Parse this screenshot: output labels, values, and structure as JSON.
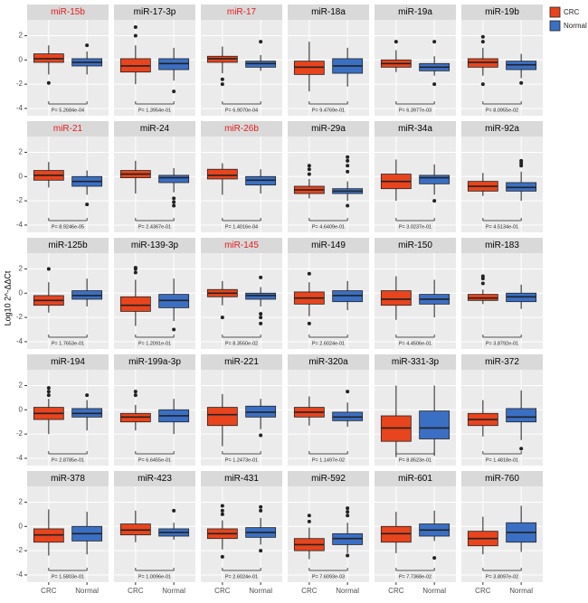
{
  "chart_data": {
    "type": "box",
    "ylabel": "Log10 2^-ΔΔCt",
    "categories": [
      "CRC",
      "Normal"
    ],
    "series": [
      {
        "name": "CRC",
        "color": "#e8441d"
      },
      {
        "name": "Normal",
        "color": "#3b6fc4"
      }
    ],
    "ylim": [
      -4.6,
      3.3
    ],
    "yticks": [
      -4,
      -2,
      0,
      2
    ],
    "grid": true,
    "panels": [
      {
        "title": "miR-15b",
        "title_color": "#e41a1c",
        "annotation": "P= 5.2684e-04",
        "boxes": [
          {
            "min": -1.2,
            "q1": -0.2,
            "median": 0.1,
            "q3": 0.5,
            "max": 1.2,
            "outliers": [
              -1.9
            ]
          },
          {
            "min": -1.2,
            "q1": -0.5,
            "median": -0.2,
            "q3": 0.1,
            "max": 0.7,
            "outliers": [
              1.2
            ]
          }
        ]
      },
      {
        "title": "miR-17-3p",
        "title_color": "#000000",
        "annotation": "P= 1.3954e-01",
        "boxes": [
          {
            "min": -2.0,
            "q1": -1.0,
            "median": -0.5,
            "q3": 0.1,
            "max": 1.2,
            "outliers": [
              2.0,
              2.7
            ]
          },
          {
            "min": -1.7,
            "q1": -0.8,
            "median": -0.3,
            "q3": 0.1,
            "max": 1.0,
            "outliers": [
              -2.6
            ]
          }
        ]
      },
      {
        "title": "miR-17",
        "title_color": "#e41a1c",
        "annotation": "P= 6.9070e-04",
        "boxes": [
          {
            "min": -1.1,
            "q1": -0.2,
            "median": 0.1,
            "q3": 0.3,
            "max": 1.1,
            "outliers": [
              -1.6,
              -2.0
            ]
          },
          {
            "min": -0.9,
            "q1": -0.6,
            "median": -0.3,
            "q3": -0.1,
            "max": 0.4,
            "outliers": [
              1.5
            ]
          }
        ]
      },
      {
        "title": "miR-18a",
        "title_color": "#000000",
        "annotation": "P= 9.4769e-01",
        "boxes": [
          {
            "min": -2.6,
            "q1": -1.2,
            "median": -0.6,
            "q3": -0.1,
            "max": 1.5,
            "outliers": []
          },
          {
            "min": -2.2,
            "q1": -1.1,
            "median": -0.5,
            "q3": 0.1,
            "max": 1.0,
            "outliers": []
          }
        ]
      },
      {
        "title": "miR-19a",
        "title_color": "#000000",
        "annotation": "P= 6.3977e-03",
        "boxes": [
          {
            "min": -1.0,
            "q1": -0.6,
            "median": -0.3,
            "q3": 0.0,
            "max": 0.8,
            "outliers": [
              1.5
            ]
          },
          {
            "min": -1.3,
            "q1": -0.9,
            "median": -0.6,
            "q3": -0.3,
            "max": 0.3,
            "outliers": [
              1.5,
              -2.0
            ]
          }
        ]
      },
      {
        "title": "miR-19b",
        "title_color": "#000000",
        "annotation": "P= 8.0955e-02",
        "boxes": [
          {
            "min": -1.3,
            "q1": -0.6,
            "median": -0.2,
            "q3": 0.1,
            "max": 1.0,
            "outliers": [
              1.9,
              1.5,
              -2.0
            ]
          },
          {
            "min": -1.5,
            "q1": -0.8,
            "median": -0.4,
            "q3": -0.1,
            "max": 0.5,
            "outliers": [
              -1.9
            ]
          }
        ]
      },
      {
        "title": "miR-21",
        "title_color": "#e41a1c",
        "annotation": "P= 8.9246e-05",
        "boxes": [
          {
            "min": -0.9,
            "q1": -0.3,
            "median": 0.1,
            "q3": 0.5,
            "max": 1.2,
            "outliers": []
          },
          {
            "min": -1.5,
            "q1": -0.8,
            "median": -0.4,
            "q3": 0.0,
            "max": 0.5,
            "outliers": [
              -2.3
            ]
          }
        ]
      },
      {
        "title": "miR-24",
        "title_color": "#000000",
        "annotation": "P= 2.4367e-01",
        "boxes": [
          {
            "min": -1.4,
            "q1": -0.1,
            "median": 0.2,
            "q3": 0.5,
            "max": 1.3,
            "outliers": []
          },
          {
            "min": -1.3,
            "q1": -0.5,
            "median": -0.1,
            "q3": 0.1,
            "max": 0.7,
            "outliers": [
              -1.8,
              -2.1,
              -2.4
            ]
          }
        ]
      },
      {
        "title": "miR-26b",
        "title_color": "#e41a1c",
        "annotation": "P= 1.4016e-04",
        "boxes": [
          {
            "min": -1.5,
            "q1": -0.2,
            "median": 0.1,
            "q3": 0.6,
            "max": 1.1,
            "outliers": []
          },
          {
            "min": -1.4,
            "q1": -0.7,
            "median": -0.3,
            "q3": 0.0,
            "max": 0.6,
            "outliers": []
          }
        ]
      },
      {
        "title": "miR-29a",
        "title_color": "#000000",
        "annotation": "P= 4.6409e-01",
        "boxes": [
          {
            "min": -1.8,
            "q1": -1.4,
            "median": -1.1,
            "q3": -0.8,
            "max": -0.2,
            "outliers": [
              0.2,
              0.6,
              0.9
            ]
          },
          {
            "min": -2.0,
            "q1": -1.4,
            "median": -1.2,
            "q3": -1.0,
            "max": -0.4,
            "outliers": [
              0.4,
              0.9,
              1.3,
              1.6,
              -2.4
            ]
          }
        ]
      },
      {
        "title": "miR-34a",
        "title_color": "#000000",
        "annotation": "P= 3.0237e-01",
        "boxes": [
          {
            "min": -2.0,
            "q1": -1.0,
            "median": -0.4,
            "q3": 0.2,
            "max": 1.4,
            "outliers": []
          },
          {
            "min": -1.5,
            "q1": -0.6,
            "median": -0.1,
            "q3": 0.1,
            "max": 1.0,
            "outliers": [
              -2.0
            ]
          }
        ]
      },
      {
        "title": "miR-92a",
        "title_color": "#000000",
        "annotation": "P= 4.5134e-01",
        "boxes": [
          {
            "min": -1.6,
            "q1": -1.2,
            "median": -0.8,
            "q3": -0.4,
            "max": 0.3,
            "outliers": []
          },
          {
            "min": -2.0,
            "q1": -1.2,
            "median": -0.9,
            "q3": -0.5,
            "max": 0.4,
            "outliers": [
              0.9,
              1.1,
              1.3
            ]
          }
        ]
      },
      {
        "title": "miR-125b",
        "title_color": "#000000",
        "annotation": "P= 1.7653e-01",
        "boxes": [
          {
            "min": -1.6,
            "q1": -1.0,
            "median": -0.6,
            "q3": -0.2,
            "max": 0.9,
            "outliers": [
              2.0
            ]
          },
          {
            "min": -1.1,
            "q1": -0.5,
            "median": -0.2,
            "q3": 0.2,
            "max": 1.2,
            "outliers": []
          }
        ]
      },
      {
        "title": "miR-139-3p",
        "title_color": "#000000",
        "annotation": "P= 1.2091e-01",
        "boxes": [
          {
            "min": -2.7,
            "q1": -1.5,
            "median": -1.0,
            "q3": -0.3,
            "max": 1.1,
            "outliers": [
              1.7,
              2.0,
              2.1
            ]
          },
          {
            "min": -2.3,
            "q1": -1.2,
            "median": -0.6,
            "q3": -0.1,
            "max": 1.2,
            "outliers": [
              -3.0
            ]
          }
        ]
      },
      {
        "title": "miR-145",
        "title_color": "#e41a1c",
        "annotation": "P= 8.3550e-02",
        "boxes": [
          {
            "min": -1.0,
            "q1": -0.3,
            "median": 0.0,
            "q3": 0.3,
            "max": 1.0,
            "outliers": [
              -2.0
            ]
          },
          {
            "min": -1.1,
            "q1": -0.5,
            "median": -0.2,
            "q3": 0.0,
            "max": 0.5,
            "outliers": [
              1.3,
              -1.7,
              -2.0,
              -2.5
            ]
          }
        ]
      },
      {
        "title": "miR-149",
        "title_color": "#000000",
        "annotation": "P= 2.6024e-01",
        "boxes": [
          {
            "min": -1.9,
            "q1": -0.9,
            "median": -0.4,
            "q3": 0.1,
            "max": 0.9,
            "outliers": [
              1.6,
              -2.5
            ]
          },
          {
            "min": -1.4,
            "q1": -0.7,
            "median": -0.2,
            "q3": 0.2,
            "max": 1.0,
            "outliers": []
          }
        ]
      },
      {
        "title": "miR-150",
        "title_color": "#000000",
        "annotation": "P= 4.4506e-01",
        "boxes": [
          {
            "min": -2.2,
            "q1": -1.0,
            "median": -0.5,
            "q3": 0.2,
            "max": 1.4,
            "outliers": []
          },
          {
            "min": -2.0,
            "q1": -0.9,
            "median": -0.5,
            "q3": -0.1,
            "max": 1.1,
            "outliers": []
          }
        ]
      },
      {
        "title": "miR-183",
        "title_color": "#000000",
        "annotation": "P= 3.8792e-01",
        "boxes": [
          {
            "min": -0.9,
            "q1": -0.6,
            "median": -0.4,
            "q3": -0.1,
            "max": 0.3,
            "outliers": [
              0.8,
              1.2,
              1.4
            ]
          },
          {
            "min": -1.3,
            "q1": -0.7,
            "median": -0.3,
            "q3": 0.0,
            "max": 0.7,
            "outliers": []
          }
        ]
      },
      {
        "title": "miR-194",
        "title_color": "#000000",
        "annotation": "P= 2.8785e-01",
        "boxes": [
          {
            "min": -2.0,
            "q1": -0.8,
            "median": -0.3,
            "q3": 0.2,
            "max": 0.9,
            "outliers": [
              1.2,
              1.5,
              1.8
            ]
          },
          {
            "min": -1.7,
            "q1": -0.6,
            "median": -0.3,
            "q3": 0.1,
            "max": 0.8,
            "outliers": [
              1.2
            ]
          }
        ]
      },
      {
        "title": "miR-199a-3p",
        "title_color": "#000000",
        "annotation": "P= 6.6455e-01",
        "boxes": [
          {
            "min": -1.7,
            "q1": -1.0,
            "median": -0.6,
            "q3": -0.3,
            "max": 0.4,
            "outliers": [
              1.2,
              1.5
            ]
          },
          {
            "min": -2.0,
            "q1": -1.0,
            "median": -0.5,
            "q3": 0.0,
            "max": 0.9,
            "outliers": []
          }
        ]
      },
      {
        "title": "miR-221",
        "title_color": "#000000",
        "annotation": "P= 1.2473e-01",
        "boxes": [
          {
            "min": -3.0,
            "q1": -1.3,
            "median": -0.4,
            "q3": 0.2,
            "max": 1.3,
            "outliers": []
          },
          {
            "min": -1.6,
            "q1": -0.6,
            "median": -0.2,
            "q3": 0.3,
            "max": 0.9,
            "outliers": [
              -2.1
            ]
          }
        ]
      },
      {
        "title": "miR-320a",
        "title_color": "#000000",
        "annotation": "P= 1.1497e-02",
        "boxes": [
          {
            "min": -1.3,
            "q1": -0.6,
            "median": -0.2,
            "q3": 0.2,
            "max": 1.1,
            "outliers": []
          },
          {
            "min": -1.4,
            "q1": -0.9,
            "median": -0.6,
            "q3": -0.2,
            "max": 0.6,
            "outliers": [
              1.5
            ]
          }
        ]
      },
      {
        "title": "miR-331-3p",
        "title_color": "#000000",
        "annotation": "P= 8.8523e-01",
        "boxes": [
          {
            "min": -3.9,
            "q1": -2.6,
            "median": -1.5,
            "q3": -0.5,
            "max": 2.0,
            "outliers": []
          },
          {
            "min": -3.8,
            "q1": -2.4,
            "median": -1.5,
            "q3": -0.1,
            "max": 2.0,
            "outliers": []
          }
        ]
      },
      {
        "title": "miR-372",
        "title_color": "#000000",
        "annotation": "P= 1.4818e-01",
        "boxes": [
          {
            "min": -2.2,
            "q1": -1.3,
            "median": -0.8,
            "q3": -0.3,
            "max": 0.8,
            "outliers": []
          },
          {
            "min": -2.5,
            "q1": -1.0,
            "median": -0.6,
            "q3": 0.1,
            "max": 1.6,
            "outliers": [
              -3.2
            ]
          }
        ]
      },
      {
        "title": "miR-378",
        "title_color": "#000000",
        "annotation": "P= 1.5803e-01",
        "boxes": [
          {
            "min": -2.4,
            "q1": -1.3,
            "median": -0.7,
            "q3": -0.2,
            "max": 1.4,
            "outliers": []
          },
          {
            "min": -2.3,
            "q1": -1.2,
            "median": -0.6,
            "q3": 0.0,
            "max": 1.2,
            "outliers": []
          }
        ]
      },
      {
        "title": "miR-423",
        "title_color": "#000000",
        "annotation": "P= 1.0096e-01",
        "boxes": [
          {
            "min": -1.3,
            "q1": -0.7,
            "median": -0.3,
            "q3": 0.2,
            "max": 1.3,
            "outliers": []
          },
          {
            "min": -1.1,
            "q1": -0.8,
            "median": -0.5,
            "q3": -0.2,
            "max": 0.3,
            "outliers": [
              1.3
            ]
          }
        ]
      },
      {
        "title": "miR-431",
        "title_color": "#000000",
        "annotation": "P= 2.6024e-01",
        "boxes": [
          {
            "min": -1.9,
            "q1": -1.0,
            "median": -0.6,
            "q3": -0.2,
            "max": 0.5,
            "outliers": [
              1.0,
              1.3,
              1.7,
              -2.5
            ]
          },
          {
            "min": -1.5,
            "q1": -0.9,
            "median": -0.5,
            "q3": -0.1,
            "max": 0.7,
            "outliers": [
              1.3,
              1.6,
              -2.0
            ]
          }
        ]
      },
      {
        "title": "miR-592",
        "title_color": "#000000",
        "annotation": "P= 7.6093e-03",
        "boxes": [
          {
            "min": -2.7,
            "q1": -2.0,
            "median": -1.5,
            "q3": -1.0,
            "max": -0.1,
            "outliers": [
              0.4,
              0.9
            ]
          },
          {
            "min": -2.2,
            "q1": -1.5,
            "median": -1.0,
            "q3": -0.6,
            "max": 0.3,
            "outliers": [
              0.9,
              1.2,
              1.5,
              -2.4
            ]
          }
        ]
      },
      {
        "title": "miR-601",
        "title_color": "#000000",
        "annotation": "P= 7.7368e-02",
        "boxes": [
          {
            "min": -2.2,
            "q1": -1.3,
            "median": -0.6,
            "q3": 0.0,
            "max": 1.2,
            "outliers": []
          },
          {
            "min": -1.2,
            "q1": -0.8,
            "median": -0.3,
            "q3": 0.2,
            "max": 1.3,
            "outliers": [
              -2.6
            ]
          }
        ]
      },
      {
        "title": "miR-760",
        "title_color": "#000000",
        "annotation": "P= 3.8097e-02",
        "boxes": [
          {
            "min": -2.3,
            "q1": -1.6,
            "median": -1.0,
            "q3": -0.4,
            "max": 0.8,
            "outliers": []
          },
          {
            "min": -2.1,
            "q1": -1.3,
            "median": -0.5,
            "q3": 0.3,
            "max": 1.7,
            "outliers": []
          }
        ]
      }
    ]
  }
}
